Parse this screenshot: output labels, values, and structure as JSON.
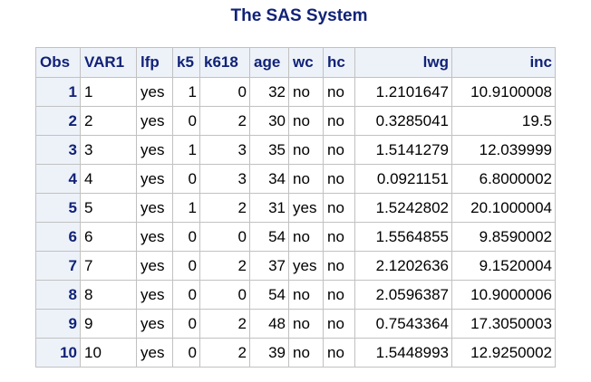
{
  "title": "The SAS System",
  "colors": {
    "header_text": "#112277",
    "header_bg": "#edf2f9",
    "border": "#c1c1c1"
  },
  "table": {
    "columns": [
      "Obs",
      "VAR1",
      "lfp",
      "k5",
      "k618",
      "age",
      "wc",
      "hc",
      "lwg",
      "inc"
    ],
    "rows": [
      [
        "1",
        "1",
        "yes",
        "1",
        "0",
        "32",
        "no",
        "no",
        "1.2101647",
        "10.9100008"
      ],
      [
        "2",
        "2",
        "yes",
        "0",
        "2",
        "30",
        "no",
        "no",
        "0.3285041",
        "19.5"
      ],
      [
        "3",
        "3",
        "yes",
        "1",
        "3",
        "35",
        "no",
        "no",
        "1.5141279",
        "12.039999"
      ],
      [
        "4",
        "4",
        "yes",
        "0",
        "3",
        "34",
        "no",
        "no",
        "0.0921151",
        "6.8000002"
      ],
      [
        "5",
        "5",
        "yes",
        "1",
        "2",
        "31",
        "yes",
        "no",
        "1.5242802",
        "20.1000004"
      ],
      [
        "6",
        "6",
        "yes",
        "0",
        "0",
        "54",
        "no",
        "no",
        "1.5564855",
        "9.8590002"
      ],
      [
        "7",
        "7",
        "yes",
        "0",
        "2",
        "37",
        "yes",
        "no",
        "2.1202636",
        "9.1520004"
      ],
      [
        "8",
        "8",
        "yes",
        "0",
        "0",
        "54",
        "no",
        "no",
        "2.0596387",
        "10.9000006"
      ],
      [
        "9",
        "9",
        "yes",
        "0",
        "2",
        "48",
        "no",
        "no",
        "0.7543364",
        "17.3050003"
      ],
      [
        "10",
        "10",
        "yes",
        "0",
        "2",
        "39",
        "no",
        "no",
        "1.5448993",
        "12.9250002"
      ]
    ]
  }
}
